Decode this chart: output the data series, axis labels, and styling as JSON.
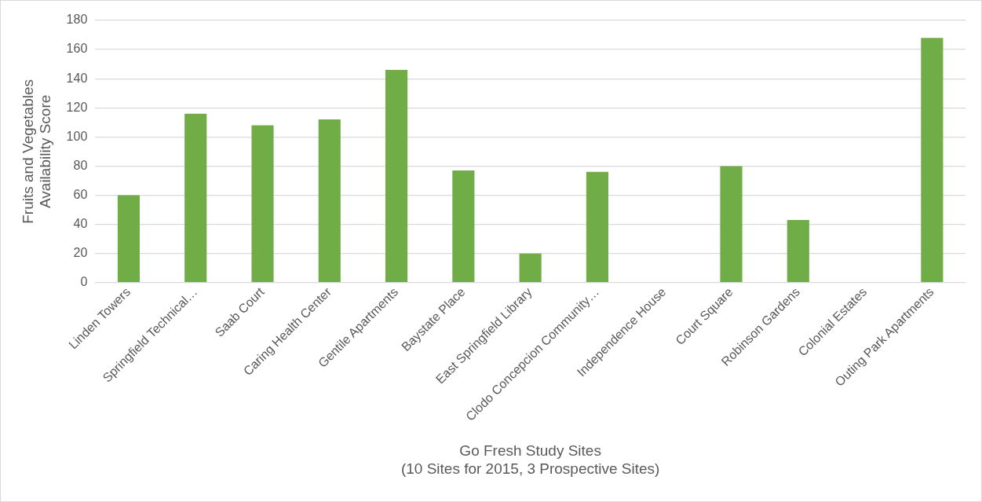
{
  "chart_data": {
    "type": "bar",
    "xlabel": "Go Fresh Study Sites\n(10 Sites for 2015, 3 Prospective Sites)",
    "ylabel": "Fruits and Vegetables\nAvailability Score",
    "categories": [
      "Linden Towers",
      "Springfield Technical…",
      "Saab Court",
      "Caring Health Center",
      "Gentile Apartments",
      "Baystate Place",
      "East Springfield Library",
      "Clodo Concepcion Community…",
      "Independence House",
      "Court Square",
      "Robinson Gardens",
      "Colonial Estates",
      "Outing Park Apartments"
    ],
    "values": [
      60,
      116,
      108,
      112,
      146,
      77,
      20,
      76,
      null,
      80,
      43,
      null,
      168
    ],
    "color": "#70ad47",
    "ylim": [
      0,
      180
    ],
    "yticks": [
      0,
      20,
      40,
      60,
      80,
      100,
      120,
      140,
      160,
      180
    ],
    "grid": "y",
    "legend": false
  }
}
